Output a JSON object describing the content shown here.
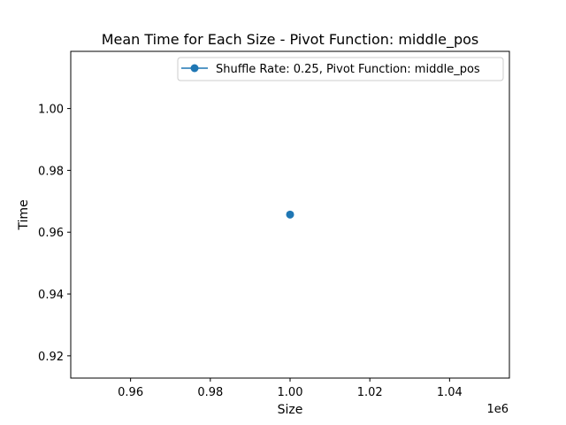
{
  "chart_data": {
    "type": "line",
    "title": "Mean Time for Each Size - Pivot Function: middle_pos",
    "xlabel": "Size",
    "ylabel": "Time",
    "x_offset_label": "1e6",
    "xlim": [
      0.945,
      1.055
    ],
    "ylim": [
      0.9128,
      1.0185
    ],
    "xticks": [
      0.96,
      0.98,
      1.0,
      1.02,
      1.04
    ],
    "xtick_labels": [
      "0.96",
      "0.98",
      "1.00",
      "1.02",
      "1.04"
    ],
    "yticks": [
      0.92,
      0.94,
      0.96,
      0.98,
      1.0
    ],
    "ytick_labels": [
      "0.92",
      "0.94",
      "0.96",
      "0.98",
      "1.00"
    ],
    "grid": false,
    "legend_position": "top-right",
    "series": [
      {
        "name": "Shuffle Rate: 0.25, Pivot Function: middle_pos",
        "color": "#1f77b4",
        "marker": "circle",
        "x": [
          1.0
        ],
        "y": [
          0.9657
        ]
      }
    ]
  }
}
